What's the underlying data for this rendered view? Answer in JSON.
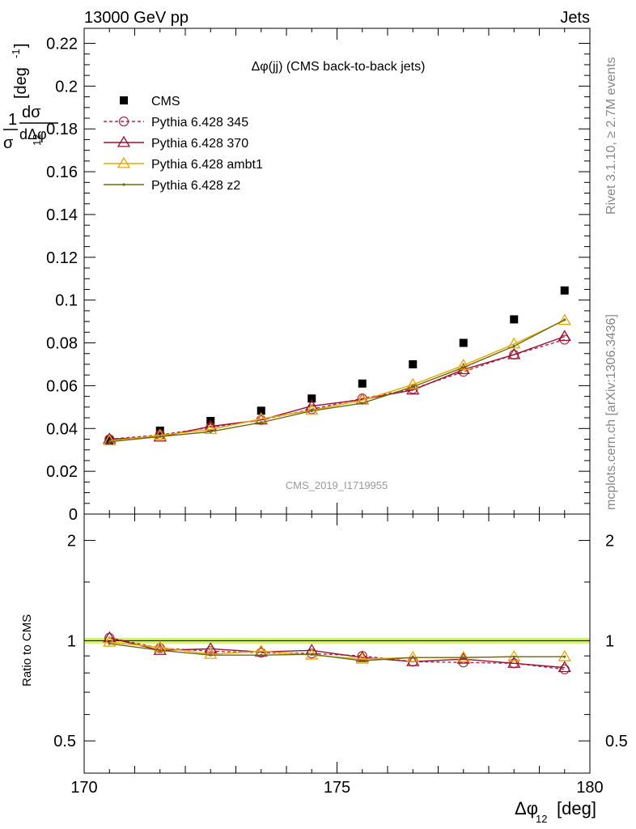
{
  "header": {
    "left": "13000 GeV pp",
    "right": "Jets"
  },
  "side": {
    "rivet": "Rivet 3.1.10, ≥ 2.7M events",
    "mcplots": "mcplots.cern.ch [arXiv:1306.3436]"
  },
  "watermark": "CMS_2019_I1719955",
  "chart_data": [
    {
      "type": "line",
      "title": "Δφ(jj) (CMS back-to-back jets)",
      "xlabel": "Δφ12 [deg]",
      "ylabel": "1/σ dσ/dΔφ12 [deg-1]",
      "xlim": [
        170,
        180
      ],
      "ylim": [
        0,
        0.227
      ],
      "yticks": [
        0,
        0.02,
        0.04,
        0.06,
        0.08,
        0.1,
        0.12,
        0.14,
        0.16,
        0.18,
        0.2,
        0.22
      ],
      "ytick_labels": [
        "0",
        "0.02",
        "0.04",
        "0.06",
        "0.08",
        "0.1",
        "0.12",
        "0.14",
        "0.16",
        "0.18",
        "0.2",
        "0.22"
      ],
      "x": [
        170.5,
        171.5,
        172.5,
        173.5,
        174.5,
        175.5,
        176.5,
        177.5,
        178.5,
        179.5
      ],
      "legend_position": "top-left",
      "series": [
        {
          "name": "CMS",
          "color": "#000000",
          "marker": "square",
          "line": "none",
          "values": [
            0.0345,
            0.039,
            0.0435,
            0.0483,
            0.054,
            0.061,
            0.07,
            0.08,
            0.091,
            0.1045
          ]
        },
        {
          "name": "Pythia 6.428 345",
          "color": "#b22a40",
          "marker": "circle",
          "line": "dashed",
          "values": [
            0.035,
            0.037,
            0.0405,
            0.044,
            0.049,
            0.054,
            0.0585,
            0.0665,
            0.0745,
            0.0815
          ]
        },
        {
          "name": "Pythia 6.428 370",
          "color": "#9a1032",
          "marker": "triangle",
          "line": "solid",
          "values": [
            0.035,
            0.036,
            0.041,
            0.044,
            0.0505,
            0.0535,
            0.058,
            0.0675,
            0.0745,
            0.083
          ]
        },
        {
          "name": "Pythia 6.428 ambt1",
          "color": "#e8a800",
          "marker": "triangle",
          "line": "solid",
          "values": [
            0.0342,
            0.0368,
            0.0395,
            0.0445,
            0.0485,
            0.0532,
            0.0605,
            0.0695,
            0.0795,
            0.0905
          ]
        },
        {
          "name": "Pythia 6.428 z2",
          "color": "#6b6b0e",
          "marker": "dot",
          "line": "solid",
          "values": [
            0.0338,
            0.0362,
            0.0385,
            0.0428,
            0.0482,
            0.0518,
            0.0595,
            0.0685,
            0.0785,
            0.0908
          ]
        }
      ]
    },
    {
      "type": "line",
      "ylabel": "Ratio to CMS",
      "xlabel": "Δφ12 [deg]",
      "xlim": [
        170,
        180
      ],
      "ylim": [
        0.4,
        2.4
      ],
      "ylog": true,
      "yticks": [
        0.5,
        1,
        2
      ],
      "ytick_labels": [
        "0.5",
        "1",
        "2"
      ],
      "xticks": [
        170,
        175,
        180
      ],
      "xtick_labels": [
        "170",
        "175",
        "180"
      ],
      "x": [
        170.5,
        171.5,
        172.5,
        173.5,
        174.5,
        175.5,
        176.5,
        177.5,
        178.5,
        179.5
      ],
      "band": {
        "color": "#d5f07a",
        "edge": "#a8d64a",
        "lo": 0.98,
        "hi": 1.02
      },
      "series": [
        {
          "name": "Pythia 6.428 345",
          "color": "#b22a40",
          "marker": "circle",
          "line": "dashed",
          "values": [
            1.02,
            0.95,
            0.93,
            0.92,
            0.915,
            0.9,
            0.865,
            0.86,
            0.855,
            0.82
          ]
        },
        {
          "name": "Pythia 6.428 370",
          "color": "#9a1032",
          "marker": "triangle",
          "line": "solid",
          "values": [
            1.02,
            0.935,
            0.945,
            0.925,
            0.935,
            0.89,
            0.865,
            0.88,
            0.855,
            0.83
          ]
        },
        {
          "name": "Pythia 6.428 ambt1",
          "color": "#e8a800",
          "marker": "triangle",
          "line": "solid",
          "values": [
            0.99,
            0.955,
            0.91,
            0.93,
            0.905,
            0.88,
            0.89,
            0.89,
            0.895,
            0.895
          ]
        },
        {
          "name": "Pythia 6.428 z2",
          "color": "#6b6b0e",
          "marker": "dot",
          "line": "solid",
          "values": [
            0.98,
            0.935,
            0.905,
            0.905,
            0.91,
            0.87,
            0.89,
            0.89,
            0.895,
            0.895
          ]
        }
      ]
    }
  ]
}
